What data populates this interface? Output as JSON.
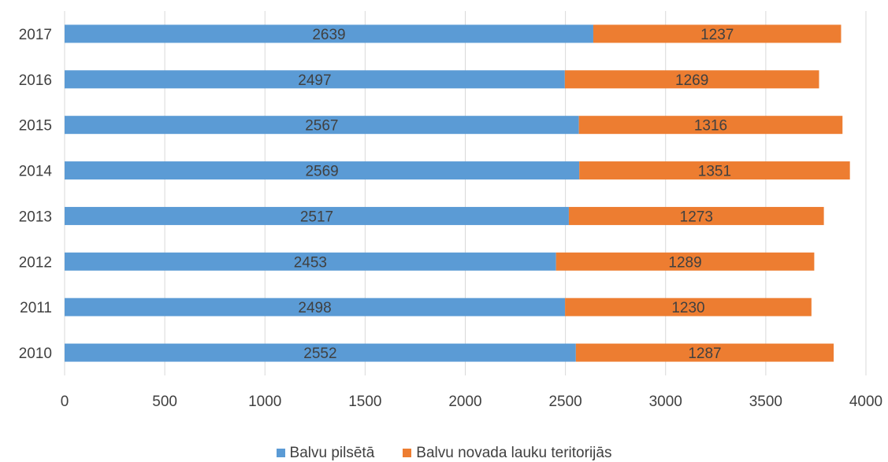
{
  "chart_data": {
    "type": "bar",
    "orientation": "horizontal",
    "stacked": true,
    "categories": [
      "2010",
      "2011",
      "2012",
      "2013",
      "2014",
      "2015",
      "2016",
      "2017"
    ],
    "series": [
      {
        "name": "Balvu pilsētā",
        "color": "#5b9bd5",
        "values": [
          2552,
          2498,
          2453,
          2517,
          2569,
          2567,
          2497,
          2639
        ]
      },
      {
        "name": "Balvu novada lauku teritorijās",
        "color": "#ed7d31",
        "values": [
          1287,
          1230,
          1289,
          1273,
          1351,
          1316,
          1269,
          1237
        ]
      }
    ],
    "xlim": [
      0,
      4000
    ],
    "xticks": [
      "0",
      "500",
      "1000",
      "1500",
      "2000",
      "2500",
      "3000",
      "3500",
      "4000"
    ],
    "grid": true,
    "legend_position": "bottom"
  }
}
